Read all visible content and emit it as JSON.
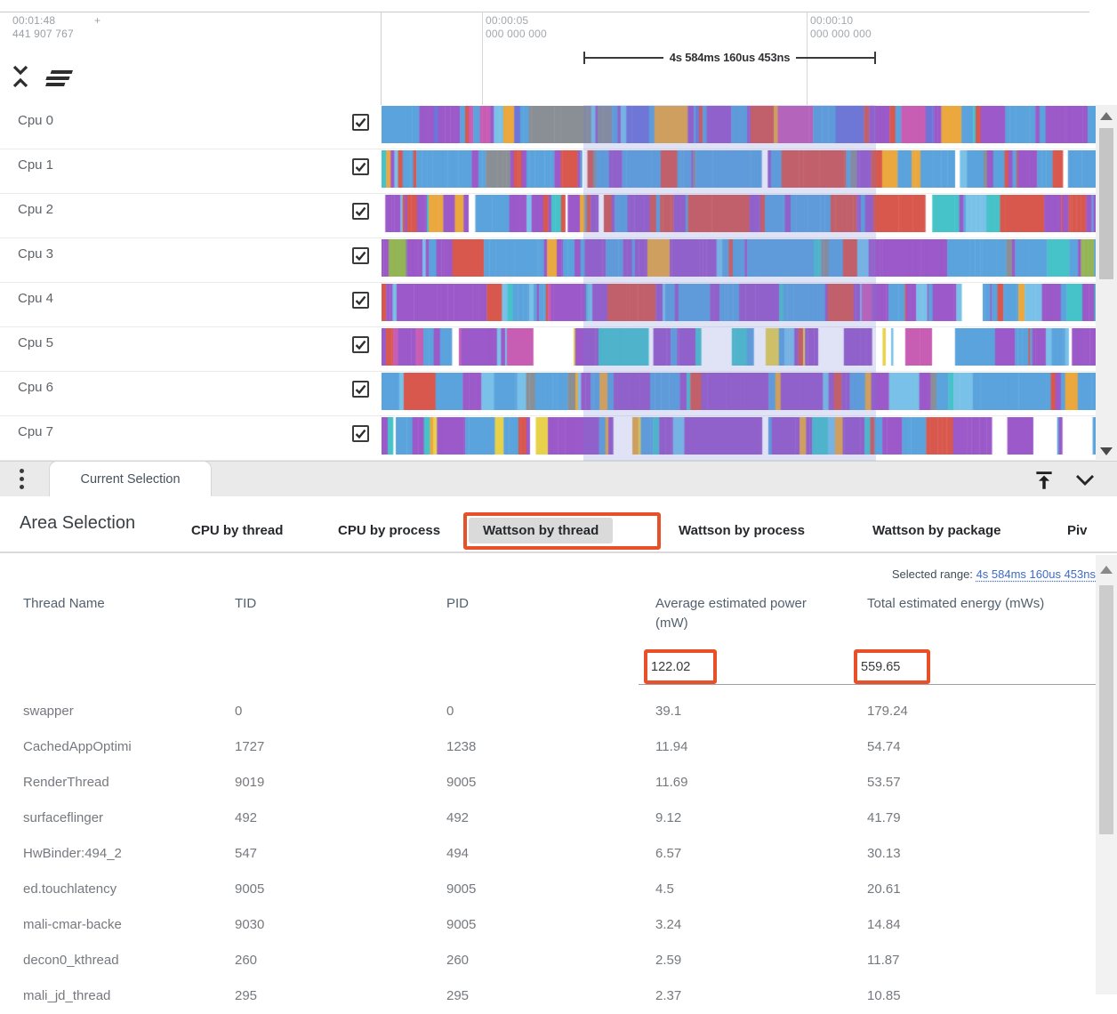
{
  "timeline": {
    "origin": {
      "time": "00:01:48",
      "plus": "+",
      "frac": "441 907 767"
    },
    "ticks": [
      {
        "time": "00:00:05",
        "frac": "000 000 000"
      },
      {
        "time": "00:00:10",
        "frac": "000 000 000"
      }
    ],
    "span_label": "4s 584ms 160us 453ns"
  },
  "tracks": {
    "rows": [
      {
        "label": "Cpu 0",
        "checked": true,
        "seed": 11,
        "palette": [
          [
            "#d9584e",
            8
          ],
          [
            "#5ba3dd",
            30
          ],
          [
            "#79c1e8",
            8
          ],
          [
            "#46c2c9",
            7
          ],
          [
            "#9b59c9",
            20
          ],
          [
            "#eaa83e",
            12
          ],
          [
            "#c85db4",
            5
          ],
          [
            "#8a8f96",
            3
          ],
          [
            "#6f74d8",
            7
          ]
        ]
      },
      {
        "label": "Cpu 1",
        "checked": true,
        "seed": 22,
        "palette": [
          [
            "#d9584e",
            22
          ],
          [
            "#5ba3dd",
            34
          ],
          [
            "#79c1e8",
            6
          ],
          [
            "#9b59c9",
            24
          ],
          [
            "#eaa83e",
            4
          ],
          [
            "#8a8f96",
            4
          ],
          [
            "#46c2c9",
            3
          ],
          [
            "#ffffff",
            3
          ]
        ]
      },
      {
        "label": "Cpu 2",
        "checked": true,
        "seed": 33,
        "palette": [
          [
            "#d9584e",
            26
          ],
          [
            "#5ba3dd",
            26
          ],
          [
            "#9b59c9",
            26
          ],
          [
            "#79c1e8",
            6
          ],
          [
            "#eaa83e",
            6
          ],
          [
            "#46c2c9",
            4
          ],
          [
            "#8a8f96",
            3
          ],
          [
            "#ffffff",
            3
          ]
        ]
      },
      {
        "label": "Cpu 3",
        "checked": true,
        "seed": 44,
        "palette": [
          [
            "#5ba3dd",
            34
          ],
          [
            "#9b59c9",
            28
          ],
          [
            "#d9584e",
            10
          ],
          [
            "#79c1e8",
            8
          ],
          [
            "#8a8f96",
            8
          ],
          [
            "#94b555",
            4
          ],
          [
            "#46c2c9",
            4
          ],
          [
            "#eaa83e",
            4
          ]
        ]
      },
      {
        "label": "Cpu 4",
        "checked": true,
        "seed": 55,
        "palette": [
          [
            "#5ba3dd",
            40
          ],
          [
            "#9b59c9",
            24
          ],
          [
            "#79c1e8",
            10
          ],
          [
            "#46c2c9",
            8
          ],
          [
            "#d9584e",
            6
          ],
          [
            "#eaa83e",
            5
          ],
          [
            "#c85db4",
            4
          ],
          [
            "#ffffff",
            3
          ]
        ]
      },
      {
        "label": "Cpu 5",
        "checked": true,
        "seed": 66,
        "palette": [
          [
            "#9b59c9",
            32
          ],
          [
            "#5ba3dd",
            26
          ],
          [
            "#79c1e8",
            10
          ],
          [
            "#ffffff",
            14
          ],
          [
            "#e8d24b",
            4
          ],
          [
            "#d9584e",
            5
          ],
          [
            "#46c2c9",
            5
          ],
          [
            "#c85db4",
            4
          ]
        ]
      },
      {
        "label": "Cpu 6",
        "checked": true,
        "seed": 77,
        "palette": [
          [
            "#5ba3dd",
            36
          ],
          [
            "#9b59c9",
            30
          ],
          [
            "#79c1e8",
            8
          ],
          [
            "#d9584e",
            8
          ],
          [
            "#46c2c9",
            6
          ],
          [
            "#eaa83e",
            6
          ],
          [
            "#8a8f96",
            6
          ]
        ]
      },
      {
        "label": "Cpu 7",
        "checked": true,
        "seed": 88,
        "palette": [
          [
            "#9b59c9",
            34
          ],
          [
            "#5ba3dd",
            22
          ],
          [
            "#79c1e8",
            8
          ],
          [
            "#ffffff",
            12
          ],
          [
            "#eaa83e",
            8
          ],
          [
            "#e8d24b",
            5
          ],
          [
            "#d9584e",
            6
          ],
          [
            "#46c2c9",
            5
          ]
        ]
      }
    ]
  },
  "tab_strip": {
    "current_tab": "Current Selection"
  },
  "details": {
    "title": "Area Selection",
    "tabs": [
      {
        "label": "CPU by thread",
        "selected": false
      },
      {
        "label": "CPU by process",
        "selected": false
      },
      {
        "label": "Wattson by thread",
        "selected": true
      },
      {
        "label": "Wattson by process",
        "selected": false
      },
      {
        "label": "Wattson by package",
        "selected": false
      },
      {
        "label": "Piv",
        "selected": false
      }
    ],
    "selected_range_label": "Selected range:",
    "selected_range_value": "4s 584ms 160us 453ns",
    "table": {
      "columns": [
        "Thread Name",
        "TID",
        "PID",
        "Average estimated power (mW)",
        "Total estimated energy (mWs)"
      ],
      "totals": [
        "122.02",
        "559.65"
      ],
      "rows": [
        [
          "swapper",
          "0",
          "0",
          "39.1",
          "179.24"
        ],
        [
          "CachedAppOptimi",
          "1727",
          "1238",
          "11.94",
          "54.74"
        ],
        [
          "RenderThread",
          "9019",
          "9005",
          "11.69",
          "53.57"
        ],
        [
          "surfaceflinger",
          "492",
          "492",
          "9.12",
          "41.79"
        ],
        [
          "HwBinder:494_2",
          "547",
          "494",
          "6.57",
          "30.13"
        ],
        [
          "ed.touchlatency",
          "9005",
          "9005",
          "4.5",
          "20.61"
        ],
        [
          "mali-cmar-backe",
          "9030",
          "9005",
          "3.24",
          "14.84"
        ],
        [
          "decon0_kthread",
          "260",
          "260",
          "2.59",
          "11.87"
        ],
        [
          "mali_jd_thread",
          "295",
          "295",
          "2.37",
          "10.85"
        ]
      ]
    }
  },
  "icons": {
    "unfold_less": "collapse-tracks",
    "menu": "track-sort-menu",
    "kebab": "details-menu",
    "vertical_align_top": "expand-panel-up",
    "chevron_down": "collapse-panel",
    "checkbox_checked": "track-selected"
  },
  "colors": {
    "annotation": "#e8502a",
    "link": "#3e6bc4",
    "selection_overlay": "rgba(108,128,210,0.22)"
  }
}
